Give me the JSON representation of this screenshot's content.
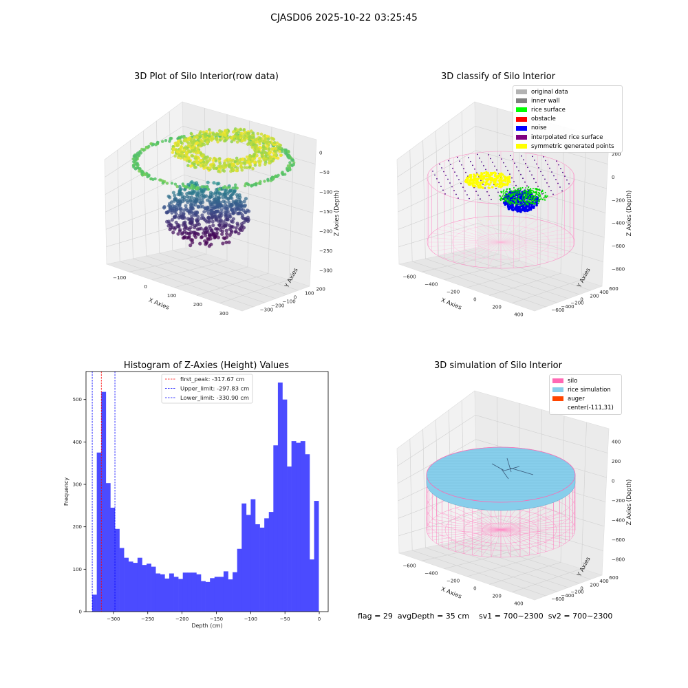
{
  "suptitle": "CJASD06 2025-10-22 03:25:45",
  "panel1": {
    "title": "3D Plot of Silo Interior(row data)",
    "xlabel": "X Axies",
    "ylabel": "Y Axies",
    "zlabel": "Z Axies (Depth)",
    "xticks": [
      "−100",
      "0",
      "100",
      "200",
      "300"
    ],
    "yticks": [
      "200",
      "100",
      "0",
      "−100",
      "−200",
      "−300"
    ],
    "zticks": [
      "0",
      "−50",
      "−100",
      "−150",
      "−200",
      "−250",
      "−300"
    ]
  },
  "panel2": {
    "title": "3D classify of Silo Interior",
    "xlabel": "X Axies",
    "ylabel": "Y Axies",
    "zlabel": "Z Axies (Depth)",
    "xticks": [
      "−600",
      "−400",
      "−200",
      "0",
      "200",
      "400"
    ],
    "yticks": [
      "600",
      "400",
      "200",
      "0",
      "−200",
      "−400",
      "−600"
    ],
    "zticks": [
      "200",
      "0",
      "−200",
      "−400",
      "−600",
      "−800"
    ],
    "legend": [
      {
        "label": "original data",
        "color": "#b3b3b3"
      },
      {
        "label": "inner wall",
        "color": "#808080"
      },
      {
        "label": "rice surface",
        "color": "#00ff00"
      },
      {
        "label": "obstacle",
        "color": "#ff0000"
      },
      {
        "label": "noise",
        "color": "#0000ff"
      },
      {
        "label": "interpolated rice surface",
        "color": "#800080"
      },
      {
        "label": "symmetric generated points",
        "color": "#ffff00"
      }
    ]
  },
  "panel4": {
    "title": "3D simulation of Silo Interior",
    "xlabel": "X Axies",
    "ylabel": "Y Axies",
    "zlabel": "Z Axies (Depth)",
    "xticks": [
      "−600",
      "−400",
      "−200",
      "0",
      "200",
      "400"
    ],
    "yticks": [
      "600",
      "400",
      "200",
      "0",
      "−200",
      "−400",
      "−600"
    ],
    "zticks": [
      "400",
      "200",
      "0",
      "−200",
      "−400",
      "−600",
      "−800"
    ],
    "legend": [
      {
        "label": "silo",
        "color": "#ff69b4"
      },
      {
        "label": "rice simulation",
        "color": "#87ceeb"
      },
      {
        "label": "auger",
        "color": "#ff4500"
      },
      {
        "label": "center(-111,31)",
        "color": ""
      }
    ]
  },
  "info": "flag = 29  avgDepth = 35 cm    sv1 = 700~2300  sv2 = 700~2300",
  "chart_data": [
    {
      "type": "scatter",
      "title": "3D Plot of Silo Interior(row data)",
      "xlabel": "X Axies",
      "ylabel": "Y Axies",
      "zlabel": "Z Axies (Depth)",
      "xlim": [
        -150,
        300
      ],
      "ylim": [
        -300,
        200
      ],
      "zlim": [
        -330,
        10
      ],
      "colormap": "viridis"
    },
    {
      "type": "scatter",
      "title": "3D classify of Silo Interior",
      "xlabel": "X Axies",
      "ylabel": "Y Axies",
      "zlabel": "Z Axies (Depth)",
      "xlim": [
        -700,
        500
      ],
      "ylim": [
        -600,
        650
      ],
      "zlim": [
        -900,
        350
      ],
      "series": [
        {
          "name": "original data",
          "color": "#b3b3b3"
        },
        {
          "name": "inner wall",
          "color": "#808080"
        },
        {
          "name": "rice surface",
          "color": "#00ff00"
        },
        {
          "name": "obstacle",
          "color": "#ff0000"
        },
        {
          "name": "noise",
          "color": "#0000ff"
        },
        {
          "name": "interpolated rice surface",
          "color": "#800080"
        },
        {
          "name": "symmetric generated points",
          "color": "#ffff00"
        }
      ]
    },
    {
      "type": "bar",
      "title": "Histogram of Z-Axies (Height) Values",
      "xlabel": "Depth (cm)",
      "ylabel": "Frequency",
      "xlim": [
        -340,
        13
      ],
      "ylim": [
        0,
        566
      ],
      "xticks": [
        -300,
        -250,
        -200,
        -150,
        -100,
        -50,
        0
      ],
      "yticks": [
        0,
        100,
        200,
        300,
        400,
        500
      ],
      "bin_start": -330.9,
      "bin_width": 6.6,
      "values": [
        40,
        375,
        518,
        303,
        245,
        195,
        150,
        127,
        118,
        115,
        127,
        110,
        113,
        106,
        90,
        88,
        78,
        90,
        82,
        77,
        92,
        92,
        92,
        88,
        72,
        70,
        79,
        82,
        82,
        95,
        76,
        93,
        148,
        255,
        228,
        265,
        206,
        198,
        220,
        235,
        392,
        540,
        500,
        342,
        402,
        398,
        402,
        371,
        123,
        261
      ],
      "bar_color": "#4b4bff",
      "vlines": [
        {
          "label": "first_peak: -317.67 cm",
          "x": -317.67,
          "color": "#ff0000"
        },
        {
          "label": "Upper_limit: -297.83 cm",
          "x": -297.83,
          "color": "#0000ff"
        },
        {
          "label": "Lower_limit: -330.90 cm",
          "x": -330.9,
          "color": "#0000ff"
        }
      ],
      "legend_position": "upper center"
    },
    {
      "type": "scatter",
      "title": "3D simulation of Silo Interior",
      "xlabel": "X Axies",
      "ylabel": "Y Axies",
      "zlabel": "Z Axies (Depth)",
      "xlim": [
        -700,
        500
      ],
      "ylim": [
        -600,
        650
      ],
      "zlim": [
        -900,
        450
      ],
      "series": [
        {
          "name": "silo",
          "color": "#ff69b4"
        },
        {
          "name": "rice simulation",
          "color": "#87ceeb"
        },
        {
          "name": "auger",
          "color": "#ff4500"
        },
        {
          "name": "center(-111,31)",
          "color": ""
        }
      ]
    }
  ]
}
